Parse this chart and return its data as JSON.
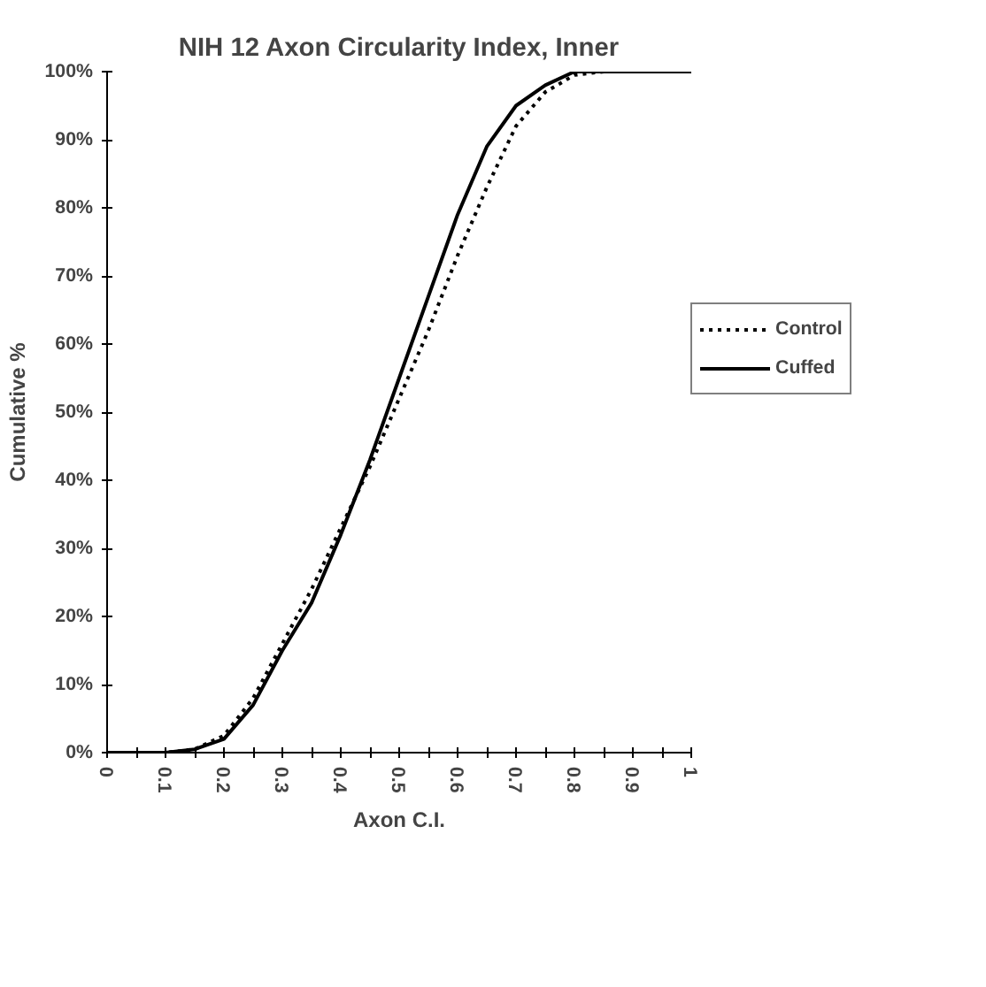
{
  "chart_data": {
    "type": "line",
    "title": "NIH 12 Axon Circularity Index, Inner",
    "xlabel": "Axon C.I.",
    "ylabel": "Cumulative %",
    "x": [
      0,
      0.05,
      0.1,
      0.15,
      0.2,
      0.25,
      0.3,
      0.35,
      0.4,
      0.45,
      0.5,
      0.55,
      0.6,
      0.65,
      0.7,
      0.75,
      0.8,
      0.85,
      0.9,
      0.95,
      1
    ],
    "series": [
      {
        "name": "Control",
        "color": "#000000",
        "line_style": "dotted",
        "values": [
          0,
          0,
          0,
          0.5,
          2.5,
          8,
          16,
          24,
          33,
          42,
          52,
          62,
          73,
          83,
          92,
          97,
          99.5,
          100,
          100,
          100,
          100
        ]
      },
      {
        "name": "Cuffed",
        "color": "#000000",
        "line_style": "solid",
        "values": [
          0,
          0,
          0,
          0.5,
          2,
          7,
          15,
          22,
          32,
          43,
          55,
          67,
          79,
          89,
          95,
          98,
          100,
          100,
          100,
          100,
          100
        ]
      }
    ],
    "xlim": [
      0,
      1
    ],
    "xticks": [
      0,
      {
        "value": 0.05,
        "label": null
      },
      0.1,
      {
        "value": 0.15,
        "label": null
      },
      0.2,
      {
        "value": 0.25,
        "label": null
      },
      0.3,
      {
        "value": 0.35,
        "label": null
      },
      0.4,
      {
        "value": 0.45,
        "label": null
      },
      0.5,
      {
        "value": 0.55,
        "label": null
      },
      0.6,
      {
        "value": 0.65,
        "label": null
      },
      0.7,
      {
        "value": 0.75,
        "label": null
      },
      0.8,
      {
        "value": 0.85,
        "label": null
      },
      0.9,
      {
        "value": 0.95,
        "label": null
      },
      1
    ],
    "ylim": [
      0,
      100
    ],
    "yticks": [
      {
        "value": 0,
        "label": "0%"
      },
      {
        "value": 10,
        "label": "10%"
      },
      {
        "value": 20,
        "label": "20%"
      },
      {
        "value": 30,
        "label": "30%"
      },
      {
        "value": 40,
        "label": "40%"
      },
      {
        "value": 50,
        "label": "50%"
      },
      {
        "value": 60,
        "label": "60%"
      },
      {
        "value": 70,
        "label": "70%"
      },
      {
        "value": 80,
        "label": "80%"
      },
      {
        "value": 90,
        "label": "90%"
      },
      {
        "value": 100,
        "label": "100%"
      }
    ],
    "grid": false,
    "legend": "right",
    "marker": "none"
  }
}
